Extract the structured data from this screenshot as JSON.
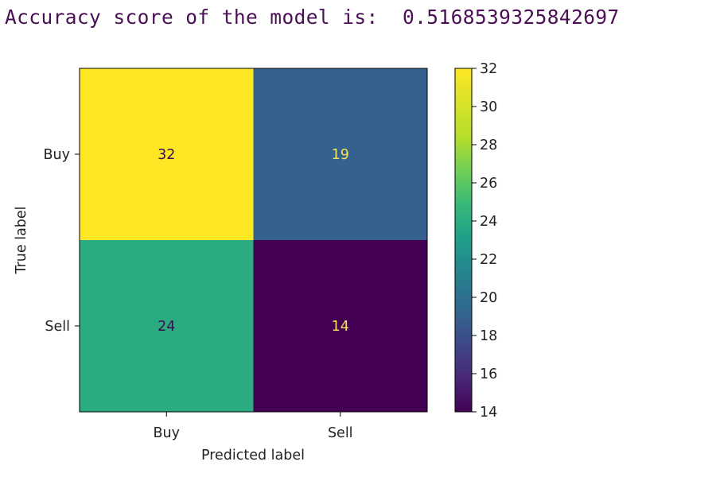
{
  "console": {
    "prefix": "Accuracy score of the model is:",
    "value": "0.5168539325842697"
  },
  "chart_data": {
    "type": "heatmap",
    "x_categories": [
      "Buy",
      "Sell"
    ],
    "y_categories": [
      "Buy",
      "Sell"
    ],
    "values": [
      [
        32,
        19
      ],
      [
        24,
        14
      ]
    ],
    "xlabel": "Predicted label",
    "ylabel": "True label",
    "colorbar": {
      "min": 14,
      "max": 32,
      "ticks": [
        14,
        16,
        18,
        20,
        22,
        24,
        26,
        28,
        30,
        32
      ],
      "colormap": "viridis"
    },
    "colors": {
      "low": "#440154",
      "high": "#fde725"
    }
  }
}
